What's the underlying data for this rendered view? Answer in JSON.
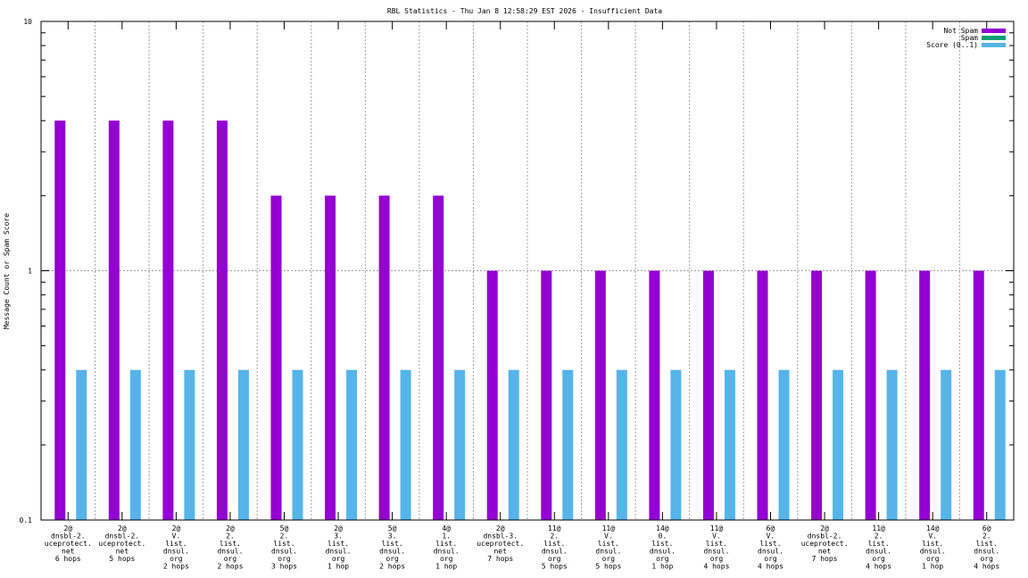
{
  "chart_data": {
    "type": "bar",
    "title": "RBL Statistics - Thu Jan  8 12:58:29 EST 2026 - Insufficient Data",
    "xlabel": "",
    "ylabel": "Message Count or Spam Score",
    "yscale": "log",
    "ylim": [
      0.1,
      10
    ],
    "yticks": [
      {
        "value": 0.1,
        "label": "0.1"
      },
      {
        "value": 1,
        "label": "1"
      },
      {
        "value": 10,
        "label": "10"
      }
    ],
    "grid": true,
    "legend_position": "top-right",
    "categories": [
      [
        "2@",
        "dnsbl-2.",
        "uceprotect.",
        "net",
        "6 hops"
      ],
      [
        "2@",
        "dnsbl-2.",
        "uceprotect.",
        "net",
        "5 hops"
      ],
      [
        "2@",
        "V.",
        "list.",
        "dnsul.",
        "org",
        "2 hops"
      ],
      [
        "2@",
        "2.",
        "list.",
        "dnsul.",
        "org",
        "2 hops"
      ],
      [
        "5@",
        "2.",
        "list.",
        "dnsul.",
        "org",
        "3 hops"
      ],
      [
        "2@",
        "3.",
        "list.",
        "dnsul.",
        "org",
        "1 hop"
      ],
      [
        "5@",
        "3.",
        "list.",
        "dnsul.",
        "org",
        "2 hops"
      ],
      [
        "4@",
        "1.",
        "list.",
        "dnsul.",
        "org",
        "1 hop"
      ],
      [
        "2@",
        "dnsbl-3.",
        "uceprotect.",
        "net",
        "7 hops"
      ],
      [
        "11@",
        "2.",
        "list.",
        "dnsul.",
        "org",
        "5 hops"
      ],
      [
        "11@",
        "V.",
        "list.",
        "dnsul.",
        "org",
        "5 hops"
      ],
      [
        "14@",
        "0.",
        "list.",
        "dnsul.",
        "org",
        "1 hop"
      ],
      [
        "11@",
        "V.",
        "list.",
        "dnsul.",
        "org",
        "4 hops"
      ],
      [
        "6@",
        "V.",
        "list.",
        "dnsul.",
        "org",
        "4 hops"
      ],
      [
        "2@",
        "dnsbl-2.",
        "uceprotect.",
        "net",
        "7 hops"
      ],
      [
        "11@",
        "2.",
        "list.",
        "dnsul.",
        "org",
        "4 hops"
      ],
      [
        "14@",
        "V.",
        "list.",
        "dnsul.",
        "org",
        "1 hop"
      ],
      [
        "6@",
        "2.",
        "list.",
        "dnsul.",
        "org",
        "4 hops"
      ]
    ],
    "series": [
      {
        "name": "Not Spam",
        "color": "#9400d3",
        "values": [
          4,
          4,
          4,
          4,
          2,
          2,
          2,
          2,
          1,
          1,
          1,
          1,
          1,
          1,
          1,
          1,
          1,
          1
        ]
      },
      {
        "name": "Spam",
        "color": "#009e73",
        "values": [
          0,
          0,
          0,
          0,
          0,
          0,
          0,
          0,
          0,
          0,
          0,
          0,
          0,
          0,
          0,
          0,
          0,
          0
        ]
      },
      {
        "name": "Score (0..1)",
        "color": "#56b4e9",
        "values": [
          0.4,
          0.4,
          0.4,
          0.4,
          0.4,
          0.4,
          0.4,
          0.4,
          0.4,
          0.4,
          0.4,
          0.4,
          0.4,
          0.4,
          0.4,
          0.4,
          0.4,
          0.4
        ]
      }
    ]
  }
}
